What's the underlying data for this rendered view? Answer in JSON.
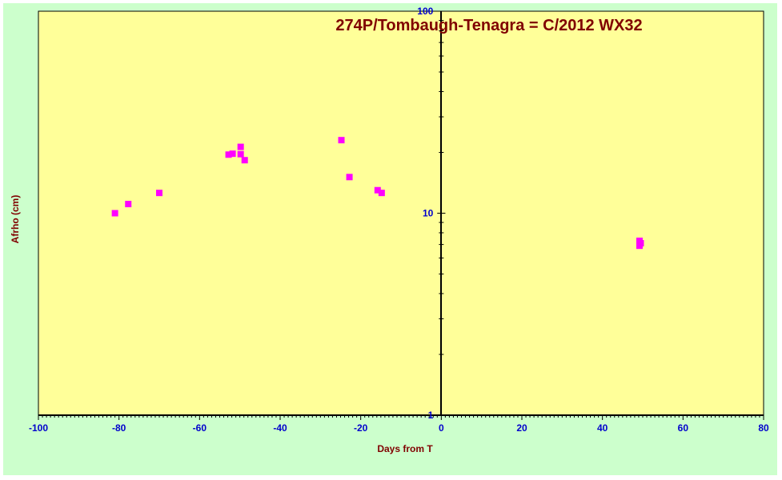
{
  "chart_data": {
    "type": "scatter",
    "title": "274P/Tombaugh-Tenagra  = C/2012 WX32",
    "xlabel": "Days from  T",
    "ylabel": "Afrho (cm)",
    "xlim": [
      -100,
      80
    ],
    "ylim": [
      1,
      100
    ],
    "y_scale": "log",
    "x_ticks": [
      -100,
      -80,
      -60,
      -40,
      -20,
      0,
      20,
      40,
      60,
      80
    ],
    "x_tick_labels": [
      "-100",
      "-80",
      "-60",
      "-40",
      "-20",
      "0",
      "20",
      "40",
      "60",
      "80"
    ],
    "y_ticks": [
      1,
      10,
      100
    ],
    "y_tick_labels": [
      "1",
      "10",
      "100"
    ],
    "grid": false,
    "legend": "none",
    "series": [
      {
        "color": "#ff00ff",
        "marker": "square",
        "points": [
          {
            "x": -81,
            "y": 10.0
          },
          {
            "x": -77.7,
            "y": 11.1
          },
          {
            "x": -70,
            "y": 12.6
          },
          {
            "x": -52.8,
            "y": 19.5
          },
          {
            "x": -51.8,
            "y": 19.7
          },
          {
            "x": -49.8,
            "y": 21.3
          },
          {
            "x": -49.8,
            "y": 19.6
          },
          {
            "x": -48.8,
            "y": 18.3
          },
          {
            "x": -24.8,
            "y": 23.0
          },
          {
            "x": -22.8,
            "y": 15.1
          },
          {
            "x": -15.8,
            "y": 13.0
          },
          {
            "x": -14.8,
            "y": 12.6
          },
          {
            "x": 49.2,
            "y": 7.3
          },
          {
            "x": 49.2,
            "y": 6.9
          },
          {
            "x": 49.5,
            "y": 7.1
          }
        ]
      }
    ]
  },
  "colors": {
    "frame_background": "#ccffcc",
    "plot_background": "#ffff99",
    "tick_label": "#0000cc",
    "axis_title": "#800000",
    "title": "#800000",
    "marker": "#ff00ff"
  }
}
